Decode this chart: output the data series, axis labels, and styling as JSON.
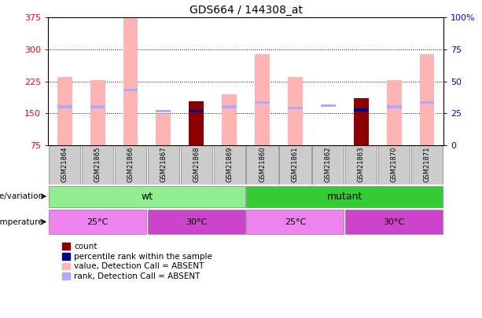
{
  "title": "GDS664 / 144308_at",
  "samples": [
    "GSM21864",
    "GSM21865",
    "GSM21866",
    "GSM21867",
    "GSM21868",
    "GSM21869",
    "GSM21860",
    "GSM21861",
    "GSM21862",
    "GSM21863",
    "GSM21870",
    "GSM21871"
  ],
  "value_absent": [
    235,
    228,
    375,
    148,
    0,
    195,
    288,
    235,
    0,
    0,
    228,
    288
  ],
  "rank_absent": [
    165,
    165,
    205,
    155,
    0,
    165,
    175,
    163,
    168,
    160,
    165,
    175
  ],
  "count": [
    0,
    0,
    0,
    0,
    178,
    0,
    0,
    0,
    0,
    185,
    0,
    0
  ],
  "percentile_rank": [
    0,
    0,
    0,
    0,
    155,
    0,
    0,
    0,
    0,
    158,
    0,
    0
  ],
  "ylim_left": [
    75,
    375
  ],
  "ylim_right": [
    0,
    100
  ],
  "yticks_left": [
    75,
    150,
    225,
    300,
    375
  ],
  "yticks_right": [
    0,
    25,
    50,
    75,
    100
  ],
  "ytick_labels_right": [
    "0",
    "25",
    "50",
    "75",
    "100%"
  ],
  "color_value_absent": "#ffb3b3",
  "color_rank_absent": "#aaaaff",
  "color_count": "#8b0000",
  "color_percentile": "#00008b",
  "color_wt_bg": "#90ee90",
  "color_mutant_bg": "#33cc33",
  "color_25C_wt": "#ee82ee",
  "color_30C_wt": "#cc44cc",
  "color_25C_mut": "#ee82ee",
  "color_30C_mut": "#cc44cc",
  "color_sample_bg": "#cccccc",
  "wt_samples": [
    0,
    1,
    2,
    3,
    4,
    5
  ],
  "mutant_samples": [
    6,
    7,
    8,
    9,
    10,
    11
  ],
  "temp_25C_wt": [
    0,
    1,
    2
  ],
  "temp_30C_wt": [
    3,
    4,
    5
  ],
  "temp_25C_mut": [
    6,
    7,
    8
  ],
  "temp_30C_mut": [
    9,
    10,
    11
  ],
  "bar_width": 0.45,
  "legend_items": [
    {
      "label": "count",
      "color": "#8b0000"
    },
    {
      "label": "percentile rank within the sample",
      "color": "#00008b"
    },
    {
      "label": "value, Detection Call = ABSENT",
      "color": "#ffb3b3"
    },
    {
      "label": "rank, Detection Call = ABSENT",
      "color": "#aaaaff"
    }
  ]
}
